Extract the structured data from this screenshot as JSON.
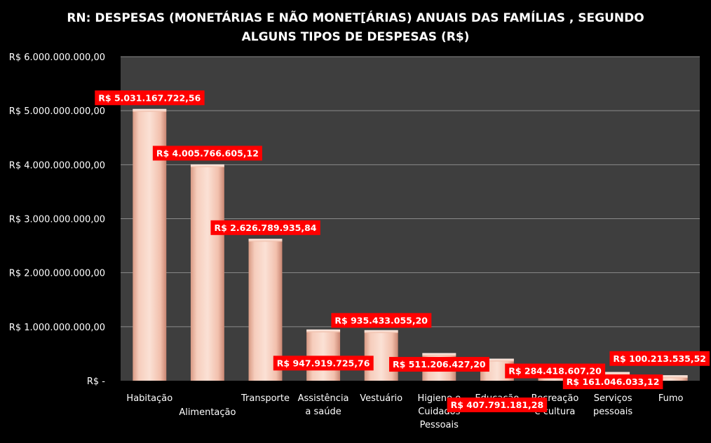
{
  "chart_data": {
    "type": "bar",
    "title_lines": [
      "RN: DESPESAS (MONETÁRIAS E NÃO MONET[ÁRIAS) ANUAIS DAS FAMÍLIAS , SEGUNDO",
      "ALGUNS TIPOS DE DESPESAS (R$)"
    ],
    "categories": [
      [
        "Habitação"
      ],
      [
        "Alimentação"
      ],
      [
        "Transporte"
      ],
      [
        "Assistência",
        "a saúde"
      ],
      [
        "Vestuário"
      ],
      [
        "Higiene e",
        "Cuidados",
        "Pessoais"
      ],
      [
        "Educação"
      ],
      [
        "Recreação",
        "e cultura"
      ],
      [
        "Serviços",
        "pessoais"
      ],
      [
        "Fumo"
      ]
    ],
    "values": [
      5031167722.56,
      4005766605.12,
      2626789935.84,
      947919725.76,
      935433055.2,
      511206427.2,
      407791181.28,
      284418607.2,
      161046033.12,
      100213535.52
    ],
    "data_labels": [
      "R$ 5.031.167.722,56",
      "R$ 4.005.766.605,12",
      "R$ 2.626.789.935,84",
      "R$ 947.919.725,76",
      "R$ 935.433.055,20",
      "R$ 511.206.427,20",
      "R$ 407.791.181,28",
      "R$ 284.418.607,20",
      "R$ 161.046.033,12",
      "R$ 100.213.535,52"
    ],
    "ylim": [
      0,
      6000000000
    ],
    "yticks": [
      0,
      1000000000,
      2000000000,
      3000000000,
      4000000000,
      5000000000,
      6000000000
    ],
    "ytick_labels": [
      "R$ -",
      "R$ 1.000.000.000,00",
      "R$ 2.000.000.000,00",
      "R$ 3.000.000.000,00",
      "R$ 4.000.000.000,00",
      "R$ 5.000.000.000,00",
      "R$ 6.000.000.000,00"
    ],
    "grid": true,
    "colors": {
      "background": "#000000",
      "plot_area": "#3e3e3e",
      "gridline": "#8a8a8a",
      "bar": "#f4c4b2",
      "label_box": "#ff0000",
      "text": "#ffffff"
    }
  }
}
